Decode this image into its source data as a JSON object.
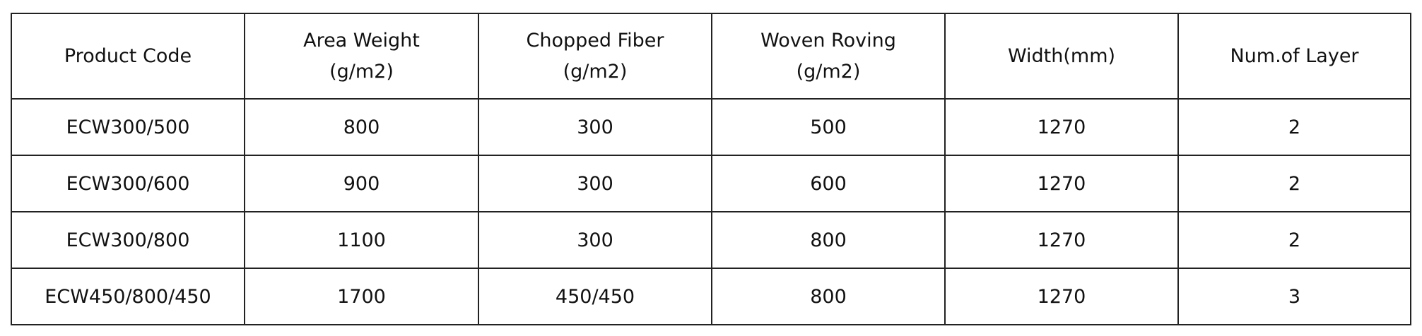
{
  "table": {
    "header": [
      [
        "Product Code"
      ],
      [
        "Area Weight",
        "(g/m2)"
      ],
      [
        "Chopped Fiber",
        "(g/m2)"
      ],
      [
        "Woven Roving",
        "(g/m2)"
      ],
      [
        "Width(mm)"
      ],
      [
        "Num.of Layer"
      ]
    ],
    "rows": [
      [
        "ECW300/500",
        "800",
        "300",
        "500",
        "1270",
        "2"
      ],
      [
        "ECW300/600",
        "900",
        "300",
        "600",
        "1270",
        "2"
      ],
      [
        "ECW300/800",
        "1100",
        "300",
        "800",
        "1270",
        "2"
      ],
      [
        "ECW450/800/450",
        "1700",
        "450/450",
        "800",
        "1270",
        "3"
      ]
    ]
  }
}
